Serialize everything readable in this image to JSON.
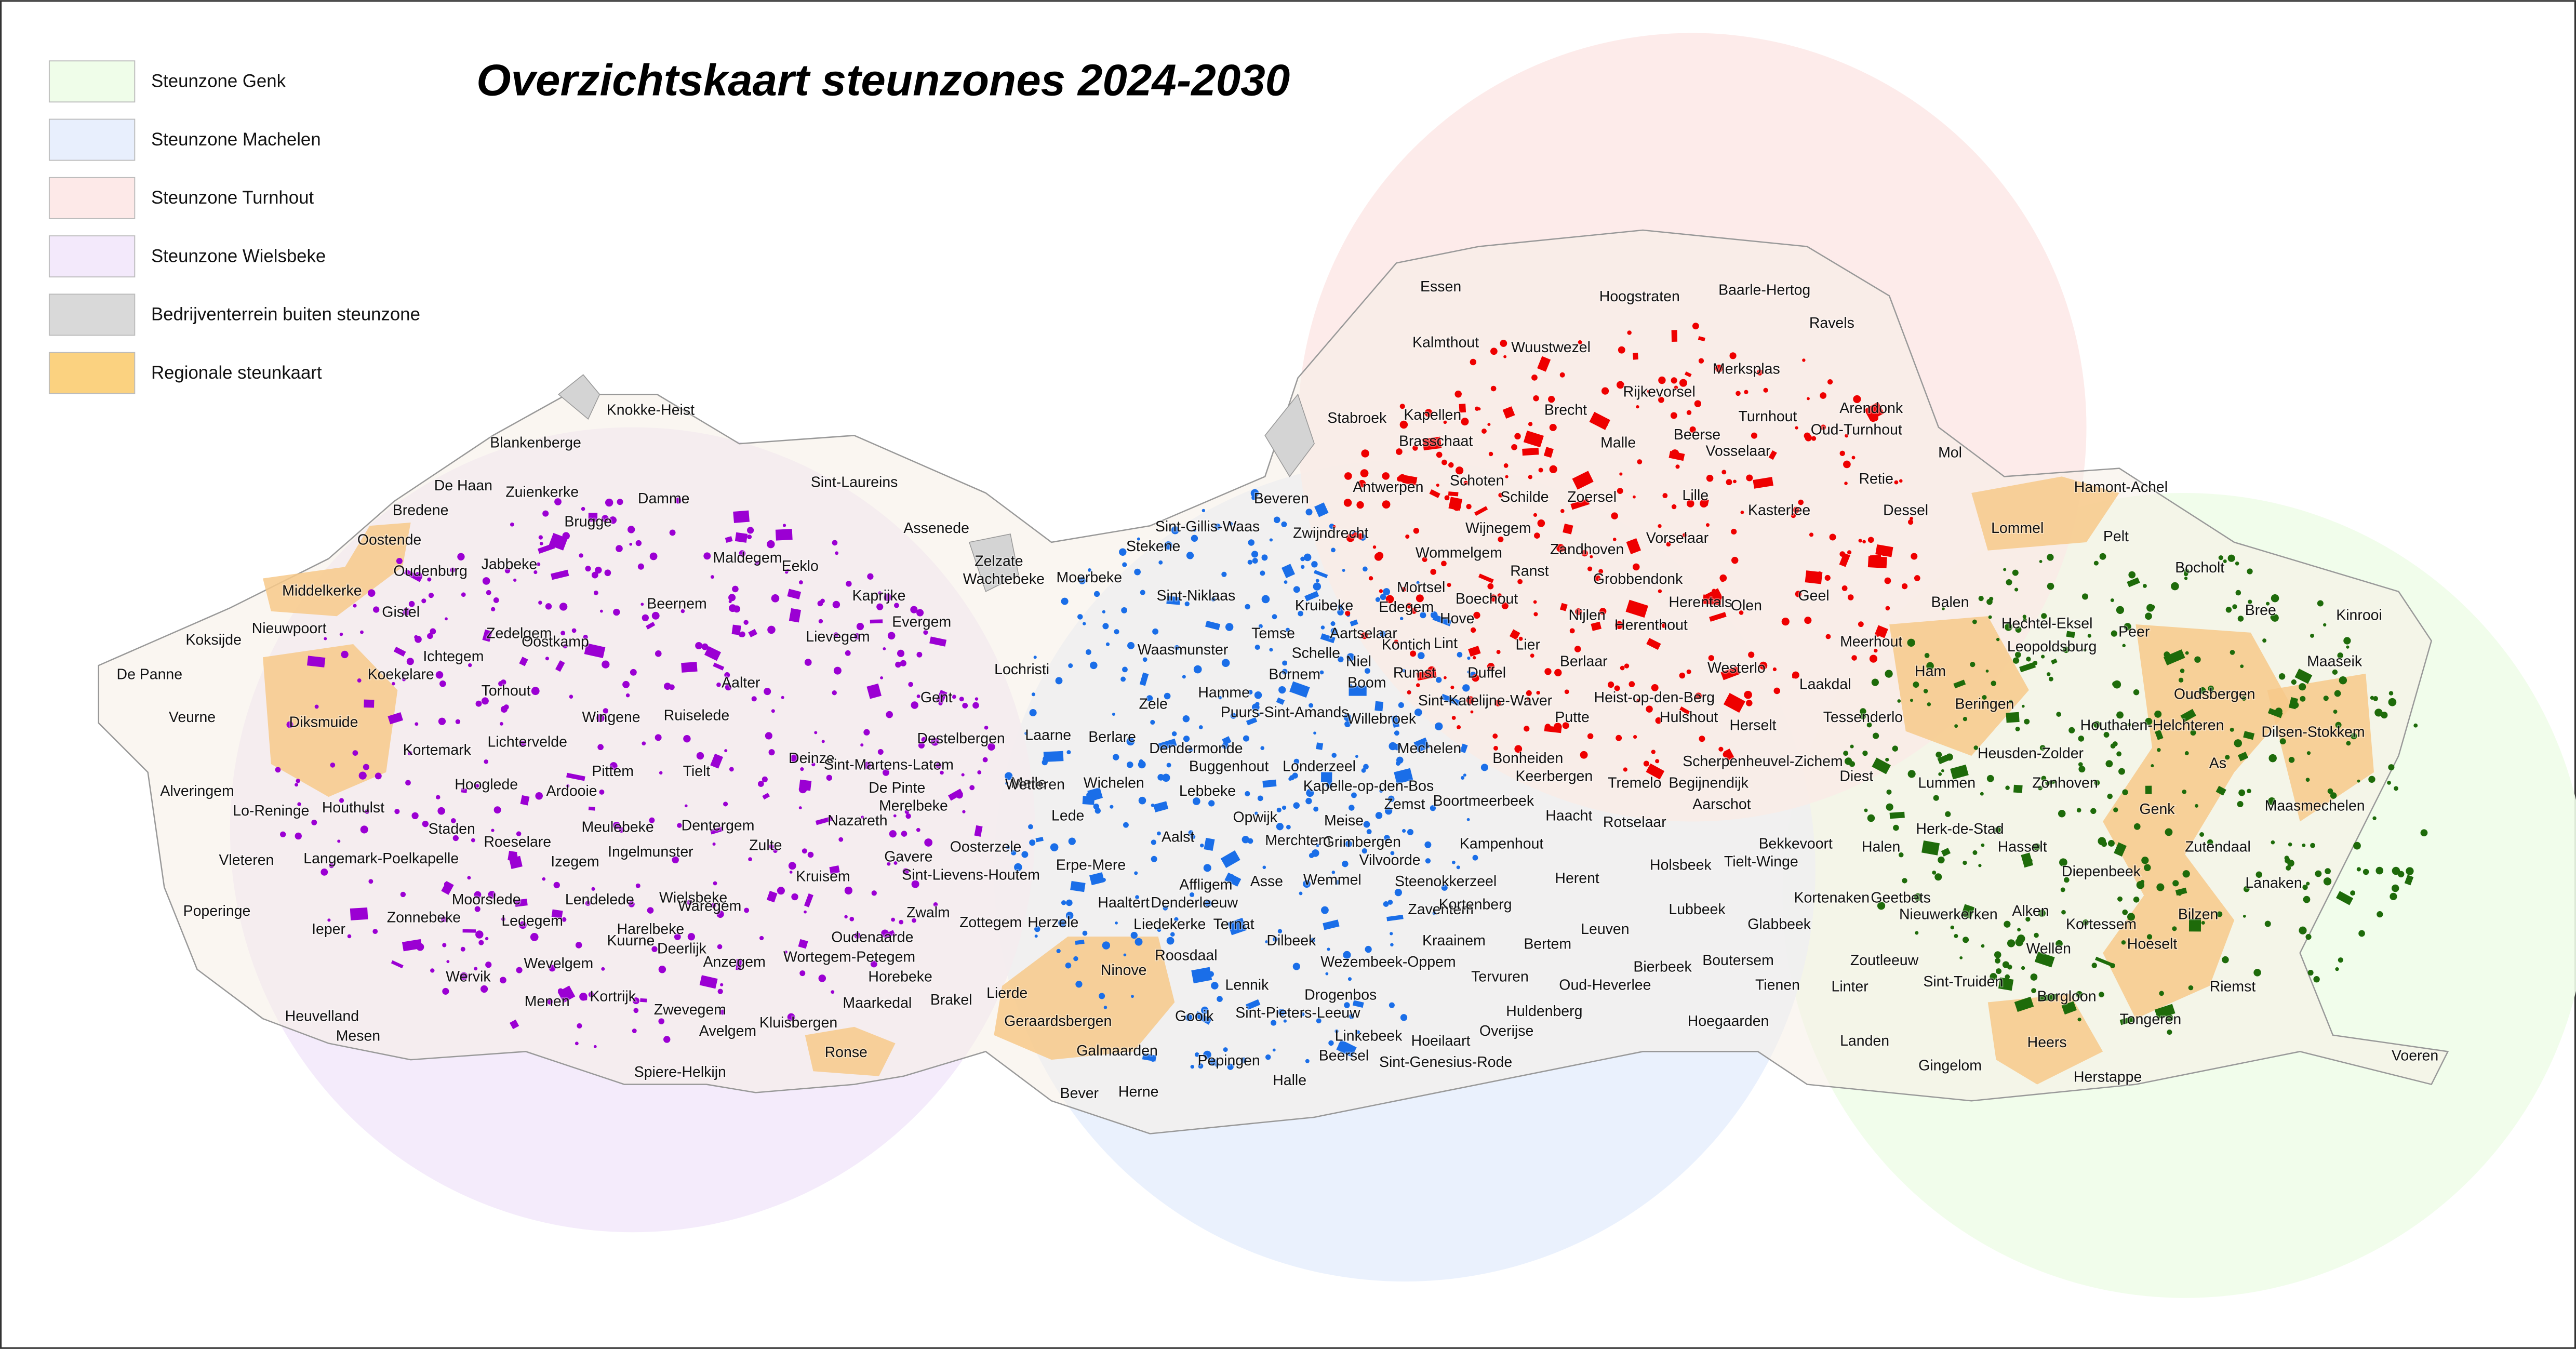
{
  "title": "Overzichtskaart steunzones 2024-2030",
  "legend": [
    {
      "label": "Steunzone Genk",
      "color": "#effde9"
    },
    {
      "label": "Steunzone Machelen",
      "color": "#e8effd"
    },
    {
      "label": "Steunzone Turnhout",
      "color": "#fde9e8"
    },
    {
      "label": "Steunzone Wielsbeke",
      "color": "#f3e9fb"
    },
    {
      "label": "Bedrijventerrein buiten steunzone",
      "color": "#d9d9d9"
    },
    {
      "label": "Regionale steunkaart",
      "color": "#fbd280"
    }
  ],
  "places": [
    "Knokke-Heist",
    "Blankenberge",
    "De Haan",
    "Zuienkerke",
    "Bredene",
    "Damme",
    "Brugge",
    "Oostende",
    "Oudenburg",
    "Jabbeke",
    "Middelkerke",
    "Maldegem",
    "Eeklo",
    "Sint-Laureins",
    "Assenede",
    "Kaprijke",
    "Gistel",
    "Nieuwpoort",
    "Koksijde",
    "Zedelgem",
    "Oostkamp",
    "Beernem",
    "Lievegem",
    "Evergem",
    "Ichtegem",
    "De Panne",
    "Koekelare",
    "Torhout",
    "Aalter",
    "Lochristi",
    "Gent",
    "Veurne",
    "Diksmuide",
    "Wingene",
    "Ruiselede",
    "Lichtervelde",
    "Kortemark",
    "Destelbergen",
    "Laarne",
    "Deinze",
    "Sint-Martens-Latem",
    "Melle",
    "Pittem",
    "Tielt",
    "Hooglede",
    "Ardooie",
    "De Pinte",
    "Alveringem",
    "Houthulst",
    "Lo-Reninge",
    "Merelbeke",
    "Staden",
    "Meulebeke",
    "Dentergem",
    "Nazareth",
    "Roeselare",
    "Ingelmunster",
    "Zulte",
    "Oosterzele",
    "Vleteren",
    "Langemark-Poelkapelle",
    "Izegem",
    "Kruisem",
    "Gavere",
    "Sint-Lievens-Houtem",
    "Poperinge",
    "Zonnebeke",
    "Moorslede",
    "Lendelede",
    "Wielsbeke",
    "Ledegem",
    "Harelbeke",
    "Waregem",
    "Zwalm",
    "Zottegem",
    "Ieper",
    "Deerlijk",
    "Anzegem",
    "Wortegem-Petegem",
    "Oudenaarde",
    "Kuurne",
    "Wevelgem",
    "Horebeke",
    "Wervik",
    "Menen",
    "Kortrijk",
    "Maarkedal",
    "Brakel",
    "Heuvelland",
    "Zwevegem",
    "Avelgem",
    "Kluisbergen",
    "Ronse",
    "Mesen",
    "Spiere-Helkijn",
    "Zelzate",
    "Wachtebeke",
    "Moerbeke",
    "Stekene",
    "Sint-Gillis-Waas",
    "Beveren",
    "Zwijndrecht",
    "Sint-Niklaas",
    "Temse",
    "Kruibeke",
    "Waasmunster",
    "Hamme",
    "Bornem",
    "Puurs-Sint-Amands",
    "Zele",
    "Berlare",
    "Dendermonde",
    "Buggenhout",
    "Londerzeel",
    "Lebbeke",
    "Kapelle-op-den-Bos",
    "Wetteren",
    "Wichelen",
    "Lede",
    "Opwijk",
    "Meise",
    "Aalst",
    "Erpe-Mere",
    "Merchtem",
    "Grimbergen",
    "Vilvoorde",
    "Asse",
    "Wemmel",
    "Affligem",
    "Haaltert",
    "Denderleeuw",
    "Liedekerke",
    "Ternat",
    "Zaventem",
    "Dilbeek",
    "Roosdaal",
    "Ninove",
    "Lennik",
    "Wezembeek-Oppem",
    "Kraainem",
    "Drogenbos",
    "Sint-Pieters-Leeuw",
    "Herzele",
    "Lierde",
    "Geraardsbergen",
    "Galmaarden",
    "Gooik",
    "Linkebeek",
    "Beersel",
    "Pepingen",
    "Halle",
    "Bever",
    "Herne",
    "Hoeilaart",
    "Sint-Genesius-Rode",
    "Overijse",
    "Huldenberg",
    "Tervuren",
    "Oud-Heverlee",
    "Bertem",
    "Kortenberg",
    "Steenokkerzeel",
    "Herent",
    "Leuven",
    "Kampenhout",
    "Zemst",
    "Boortmeerbeek",
    "Haacht",
    "Rotselaar",
    "Holsbeek",
    "Lubbeek",
    "Bierbeek",
    "Boutersem",
    "Tienen",
    "Hoegaarden",
    "Glabbeek",
    "Tielt-Winge",
    "Bekkevoort",
    "Kortenaken",
    "Geetbets",
    "Essen",
    "Hoogstraten",
    "Baarle-Hertog",
    "Ravels",
    "Kalmthout",
    "Wuustwezel",
    "Merksplas",
    "Rijkevorsel",
    "Brecht",
    "Arendonk",
    "Turnhout",
    "Stabroek",
    "Kapellen",
    "Oud-Turnhout",
    "Malle",
    "Beerse",
    "Brasschaat",
    "Vosselaar",
    "Mol",
    "Retie",
    "Schoten",
    "Antwerpen",
    "Zoersel",
    "Lille",
    "Schilde",
    "Kasterlee",
    "Dessel",
    "Wijnegem",
    "Wommelgem",
    "Zandhoven",
    "Vorselaar",
    "Ranst",
    "Grobbendonk",
    "Herentals",
    "Olen",
    "Geel",
    "Mortsel",
    "Edegem",
    "Boechout",
    "Hove",
    "Nijlen",
    "Herenthout",
    "Meerhout",
    "Aartselaar",
    "Kontich",
    "Lint",
    "Lier",
    "Berlaar",
    "Westerlo",
    "Schelle",
    "Niel",
    "Rumst",
    "Duffel",
    "Laakdal",
    "Boom",
    "Sint-Katelijne-Waver",
    "Putte",
    "Heist-op-den-Berg",
    "Hulshout",
    "Herselt",
    "Willebroek",
    "Mechelen",
    "Bonheiden",
    "Scherpenheuvel-Zichem",
    "Keerbergen",
    "Tremelo",
    "Begijnendijk",
    "Aarschot",
    "Tessenderlo",
    "Hamont-Achel",
    "Lommel",
    "Pelt",
    "Bocholt",
    "Balen",
    "Hechtel-Eksel",
    "Bree",
    "Kinrooi",
    "Peer",
    "Leopoldsburg",
    "Ham",
    "Maaseik",
    "Beringen",
    "Oudsbergen",
    "Houthalen-Helchteren",
    "Dilsen-Stokkem",
    "Lummen",
    "Heusden-Zolder",
    "Zonhoven",
    "As",
    "Diest",
    "Genk",
    "Maasmechelen",
    "Halen",
    "Herk-de-Stad",
    "Hasselt",
    "Zutendaal",
    "Diepenbeek",
    "Lanaken",
    "Nieuwerkerken",
    "Alken",
    "Kortessem",
    "Bilzen",
    "Hoeselt",
    "Wellen",
    "Zoutleeuw",
    "Sint-Truiden",
    "Riemst",
    "Linter",
    "Borgloon",
    "Tongeren",
    "Landen",
    "Heers",
    "Gingelom",
    "Herstappe",
    "Voeren"
  ]
}
